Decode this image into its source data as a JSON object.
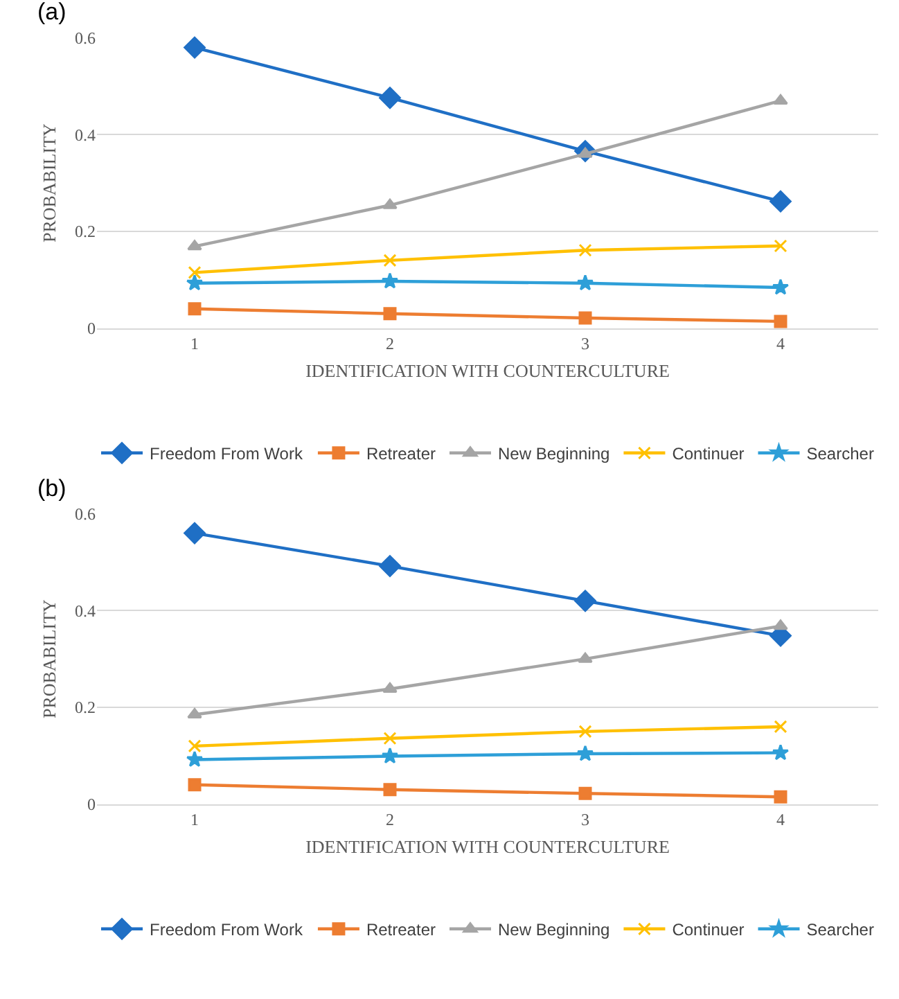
{
  "chart_data": [
    {
      "type": "line",
      "title": "(a)",
      "xlabel": "IDENTIFICATION WITH COUNTERCULTURE",
      "ylabel": "PROBABILITY",
      "categories": [
        "1",
        "2",
        "3",
        "4"
      ],
      "ylim": [
        0,
        0.6
      ],
      "yticks": [
        0,
        0.2,
        0.4,
        0.6
      ],
      "grid": "y",
      "legend": "bottom",
      "series": [
        {
          "name": "Freedom From Work",
          "color": "#1f6fc5",
          "marker": "diamond",
          "values": [
            0.58,
            0.476,
            0.366,
            0.262
          ]
        },
        {
          "name": "Retreater",
          "color": "#ed7d31",
          "marker": "square",
          "values": [
            0.04,
            0.03,
            0.021,
            0.014
          ]
        },
        {
          "name": "New Beginning",
          "color": "#a5a5a5",
          "marker": "triangle",
          "values": [
            0.169,
            0.254,
            0.36,
            0.47
          ]
        },
        {
          "name": "Continuer",
          "color": "#ffc000",
          "marker": "cross",
          "values": [
            0.115,
            0.14,
            0.161,
            0.17
          ]
        },
        {
          "name": "Searcher",
          "color": "#2e9fd8",
          "marker": "star",
          "values": [
            0.093,
            0.097,
            0.093,
            0.084
          ]
        }
      ]
    },
    {
      "type": "line",
      "title": "(b)",
      "xlabel": "IDENTIFICATION WITH COUNTERCULTURE",
      "ylabel": "PROBABILITY",
      "categories": [
        "1",
        "2",
        "3",
        "4"
      ],
      "ylim": [
        0,
        0.6
      ],
      "yticks": [
        0,
        0.2,
        0.4,
        0.6
      ],
      "grid": "y",
      "legend": "bottom",
      "series": [
        {
          "name": "Freedom From Work",
          "color": "#1f6fc5",
          "marker": "diamond",
          "values": [
            0.56,
            0.492,
            0.42,
            0.348
          ]
        },
        {
          "name": "Retreater",
          "color": "#ed7d31",
          "marker": "square",
          "values": [
            0.04,
            0.03,
            0.022,
            0.015
          ]
        },
        {
          "name": "New Beginning",
          "color": "#a5a5a5",
          "marker": "triangle",
          "values": [
            0.185,
            0.238,
            0.3,
            0.368
          ]
        },
        {
          "name": "Continuer",
          "color": "#ffc000",
          "marker": "cross",
          "values": [
            0.12,
            0.136,
            0.15,
            0.16
          ]
        },
        {
          "name": "Searcher",
          "color": "#2e9fd8",
          "marker": "star",
          "values": [
            0.092,
            0.099,
            0.104,
            0.106
          ]
        }
      ]
    }
  ]
}
